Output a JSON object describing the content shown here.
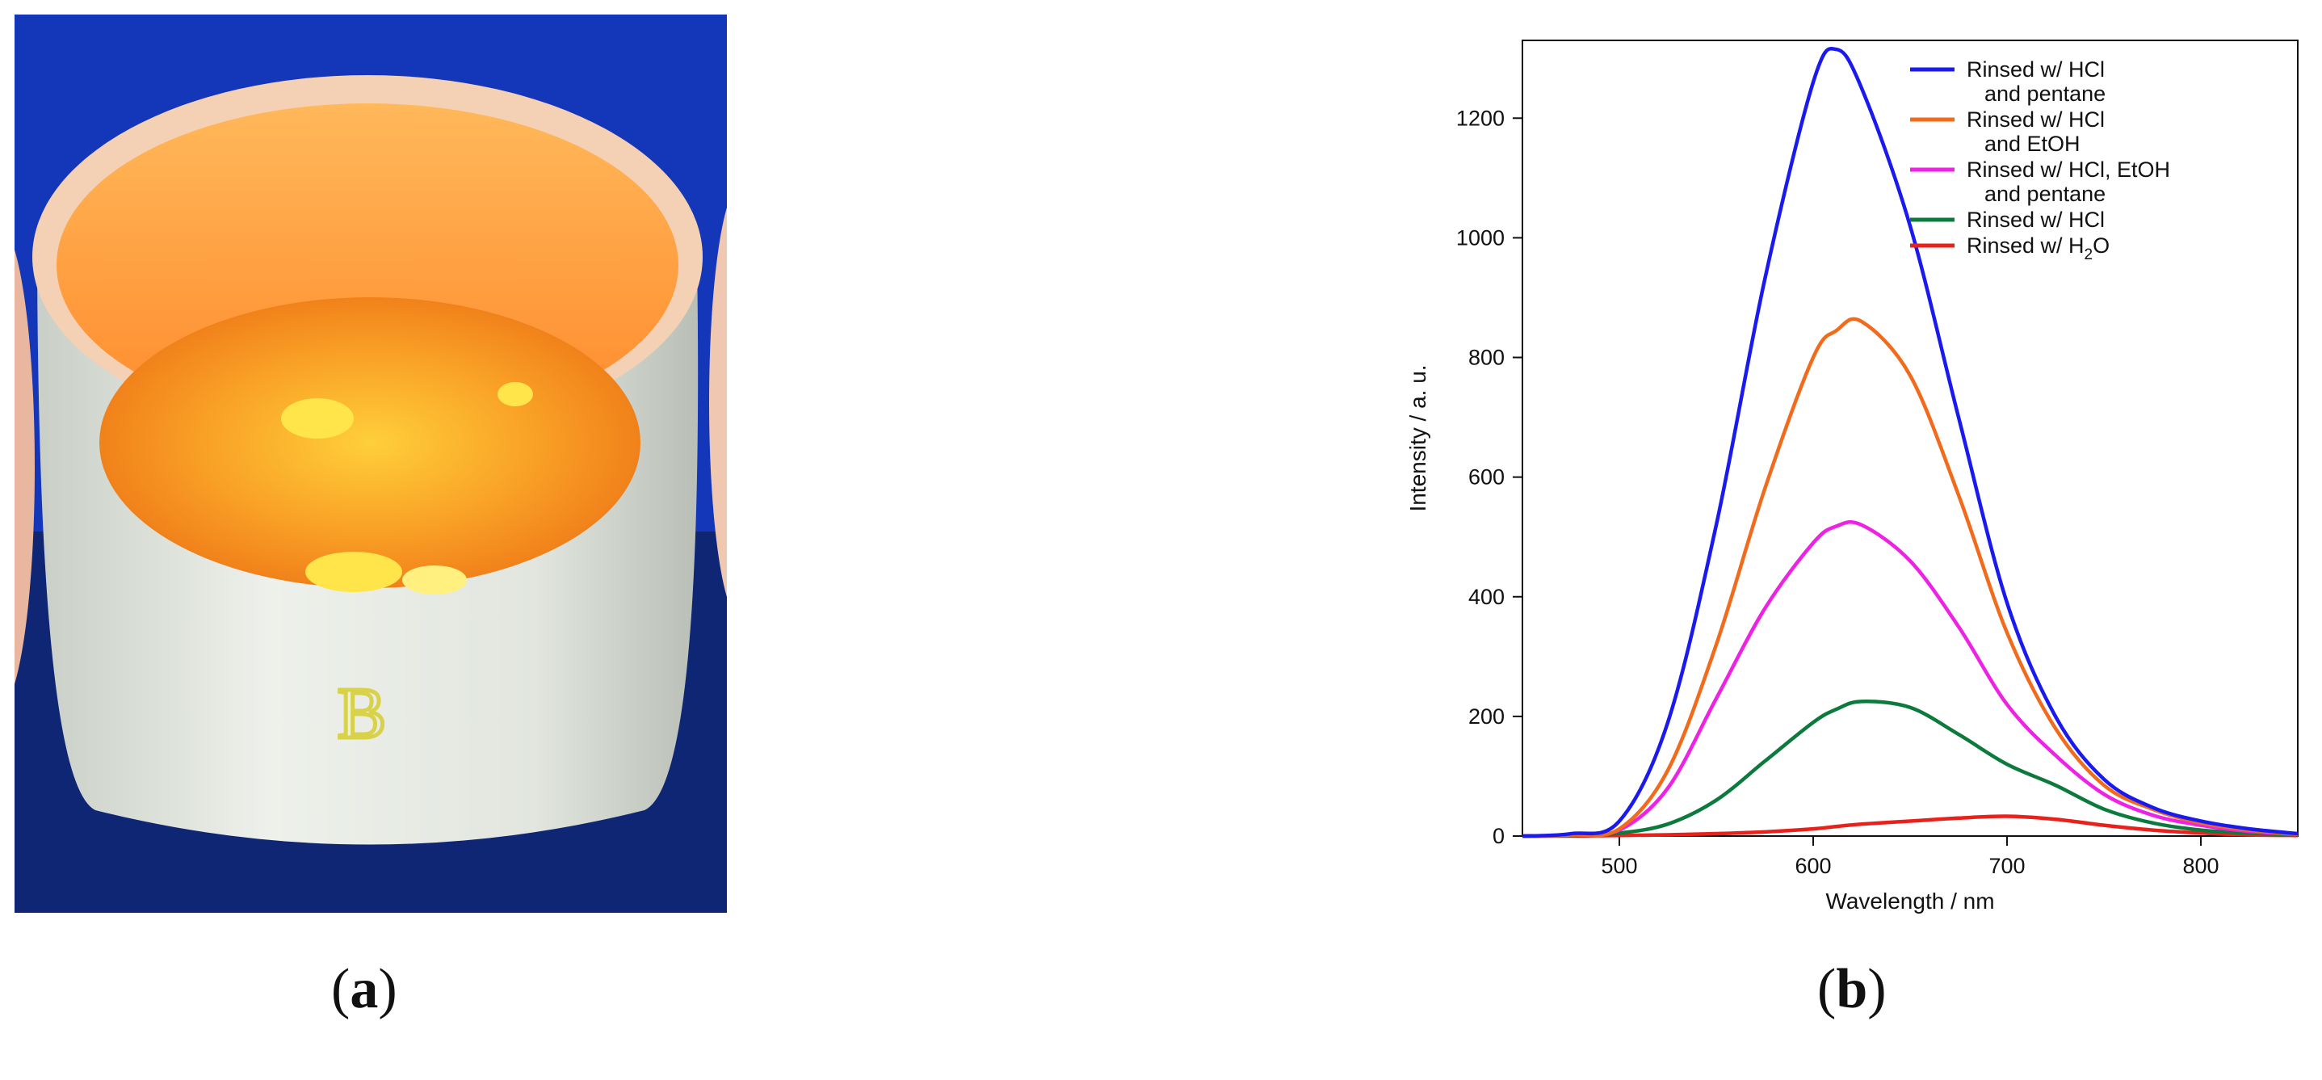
{
  "figure": {
    "panel_a_label": "a",
    "panel_b_label": "b",
    "photo": {
      "marker_text": "B",
      "colors": {
        "background": "#1436b8",
        "crucible": "#e8ece6",
        "powder": "#f7921c",
        "highlight": "#ffe44a"
      }
    }
  },
  "chart_data": {
    "type": "line",
    "title": "",
    "xlabel": "Wavelength / nm",
    "ylabel": "Intensity / a. u.",
    "xlim": [
      450,
      850
    ],
    "ylim": [
      0,
      1330
    ],
    "xticks": [
      500,
      600,
      700,
      800
    ],
    "yticks": [
      0,
      200,
      400,
      600,
      800,
      1000,
      1200
    ],
    "grid": false,
    "legend_position": "top-right",
    "x": [
      450,
      475,
      500,
      525,
      550,
      575,
      600,
      612,
      625,
      650,
      675,
      700,
      725,
      750,
      775,
      800,
      825,
      850
    ],
    "series": [
      {
        "name": "Rinsed w/ HCl and pentane",
        "legend_lines": [
          "Rinsed w/ HCl",
          "and pentane"
        ],
        "color": "#1a1aee",
        "values": [
          0,
          4,
          25,
          190,
          520,
          930,
          1260,
          1315,
          1250,
          1020,
          700,
          390,
          200,
          95,
          48,
          25,
          12,
          4
        ]
      },
      {
        "name": "Rinsed w/ HCl and EtOH",
        "legend_lines": [
          "Rinsed w/ HCl",
          "and EtOH"
        ],
        "color": "#f26b1d",
        "values": [
          0,
          2,
          12,
          110,
          320,
          580,
          800,
          845,
          860,
          770,
          570,
          340,
          180,
          85,
          45,
          22,
          10,
          3
        ]
      },
      {
        "name": "Rinsed w/ HCl, EtOH and pentane",
        "legend_lines": [
          "Rinsed w/ HCl, EtOH",
          "and pentane"
        ],
        "color": "#ee22e4",
        "values": [
          0,
          2,
          10,
          80,
          230,
          380,
          490,
          518,
          520,
          460,
          350,
          220,
          135,
          70,
          35,
          18,
          8,
          3
        ]
      },
      {
        "name": "Rinsed w/ HCl",
        "legend_lines": [
          "Rinsed w/ HCl"
        ],
        "color": "#0c7a3c",
        "values": [
          0,
          1,
          5,
          20,
          60,
          125,
          190,
          212,
          225,
          215,
          170,
          120,
          85,
          45,
          22,
          10,
          5,
          2
        ]
      },
      {
        "name": "Rinsed w/ H2O",
        "legend_lines": [
          "Rinsed w/ H2O"
        ],
        "legend_sub": {
          "prefix": "Rinsed w/ H",
          "sub": "2",
          "suffix": "O"
        },
        "color": "#e8211b",
        "values": [
          0,
          0,
          1,
          2,
          4,
          7,
          12,
          16,
          20,
          25,
          30,
          33,
          28,
          18,
          10,
          5,
          2,
          1
        ]
      }
    ]
  }
}
